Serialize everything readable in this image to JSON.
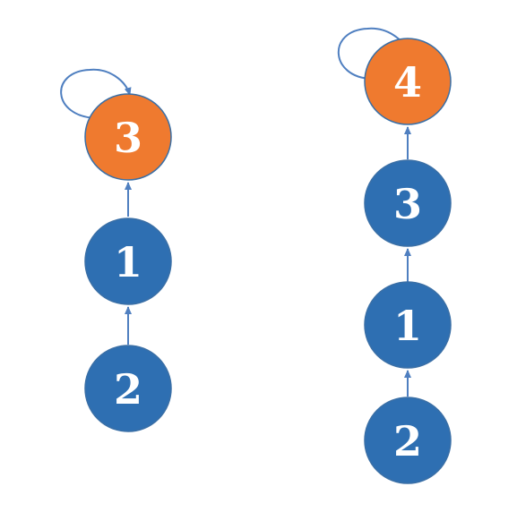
{
  "colors": {
    "node_default": "#2e6fb2",
    "node_root": "#ef7a2f",
    "node_stroke": "#3a6fa6",
    "edge": "#4f7fc0",
    "label": "#ffffff"
  },
  "trees": [
    {
      "nodes": [
        {
          "label": "3",
          "root": true
        },
        {
          "label": "1",
          "root": false
        },
        {
          "label": "2",
          "root": false
        }
      ]
    },
    {
      "nodes": [
        {
          "label": "4",
          "root": true
        },
        {
          "label": "3",
          "root": false
        },
        {
          "label": "1",
          "root": false
        },
        {
          "label": "2",
          "root": false
        }
      ]
    }
  ]
}
